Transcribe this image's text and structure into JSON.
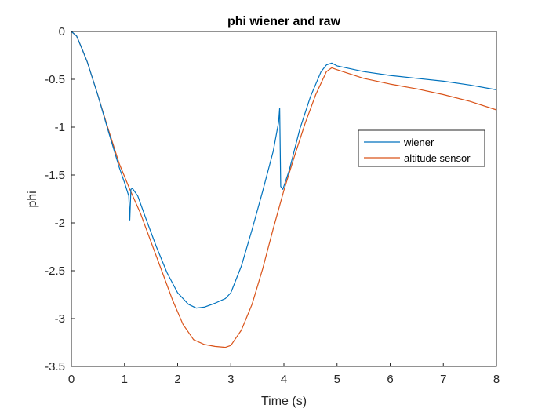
{
  "chart_data": {
    "type": "line",
    "title": "phi wiener and raw",
    "xlabel": "Time (s)",
    "ylabel": "phi",
    "xlim": [
      0,
      8
    ],
    "ylim": [
      -3.5,
      0
    ],
    "xticks": [
      0,
      1,
      2,
      3,
      4,
      5,
      6,
      7,
      8
    ],
    "yticks": [
      0,
      -0.5,
      -1,
      -1.5,
      -2,
      -2.5,
      -3,
      -3.5
    ],
    "xtick_labels": [
      "0",
      "1",
      "2",
      "3",
      "4",
      "5",
      "6",
      "7",
      "8"
    ],
    "ytick_labels": [
      "0",
      "-0.5",
      "-1",
      "-1.5",
      "-2",
      "-2.5",
      "-3",
      "-3.5"
    ],
    "grid": false,
    "legend_position": "right",
    "series": [
      {
        "name": "wiener",
        "color": "#0072bd",
        "x": [
          0,
          0.1,
          0.2,
          0.3,
          0.5,
          0.7,
          0.9,
          1.0,
          1.08,
          1.1,
          1.12,
          1.15,
          1.25,
          1.4,
          1.6,
          1.8,
          2.0,
          2.2,
          2.35,
          2.5,
          2.7,
          2.9,
          3.0,
          3.2,
          3.4,
          3.6,
          3.8,
          3.9,
          3.92,
          3.94,
          3.98,
          4.1,
          4.3,
          4.5,
          4.7,
          4.8,
          4.9,
          5.0,
          5.5,
          6.0,
          6.5,
          7.0,
          7.5,
          8.0
        ],
        "y": [
          0,
          -0.05,
          -0.18,
          -0.32,
          -0.67,
          -1.05,
          -1.42,
          -1.58,
          -1.72,
          -1.97,
          -1.65,
          -1.64,
          -1.72,
          -1.95,
          -2.25,
          -2.52,
          -2.73,
          -2.85,
          -2.89,
          -2.88,
          -2.84,
          -2.79,
          -2.73,
          -2.45,
          -2.07,
          -1.67,
          -1.25,
          -0.95,
          -0.8,
          -1.62,
          -1.65,
          -1.45,
          -1.02,
          -0.68,
          -0.42,
          -0.35,
          -0.33,
          -0.36,
          -0.42,
          -0.46,
          -0.49,
          -0.52,
          -0.56,
          -0.61
        ]
      },
      {
        "name": "altitude sensor",
        "color": "#d95319",
        "x": [
          0,
          0.1,
          0.2,
          0.3,
          0.5,
          0.7,
          0.9,
          1.1,
          1.3,
          1.5,
          1.7,
          1.9,
          2.1,
          2.3,
          2.5,
          2.7,
          2.9,
          3.0,
          3.2,
          3.4,
          3.6,
          3.8,
          4.0,
          4.2,
          4.4,
          4.6,
          4.8,
          4.9,
          5.0,
          5.5,
          6.0,
          6.5,
          7.0,
          7.5,
          8.0
        ],
        "y": [
          0,
          -0.05,
          -0.18,
          -0.32,
          -0.67,
          -1.03,
          -1.38,
          -1.65,
          -1.9,
          -2.2,
          -2.5,
          -2.8,
          -3.06,
          -3.22,
          -3.27,
          -3.29,
          -3.3,
          -3.28,
          -3.12,
          -2.85,
          -2.48,
          -2.06,
          -1.66,
          -1.3,
          -0.96,
          -0.66,
          -0.42,
          -0.38,
          -0.4,
          -0.49,
          -0.55,
          -0.6,
          -0.66,
          -0.73,
          -0.82
        ]
      }
    ]
  }
}
